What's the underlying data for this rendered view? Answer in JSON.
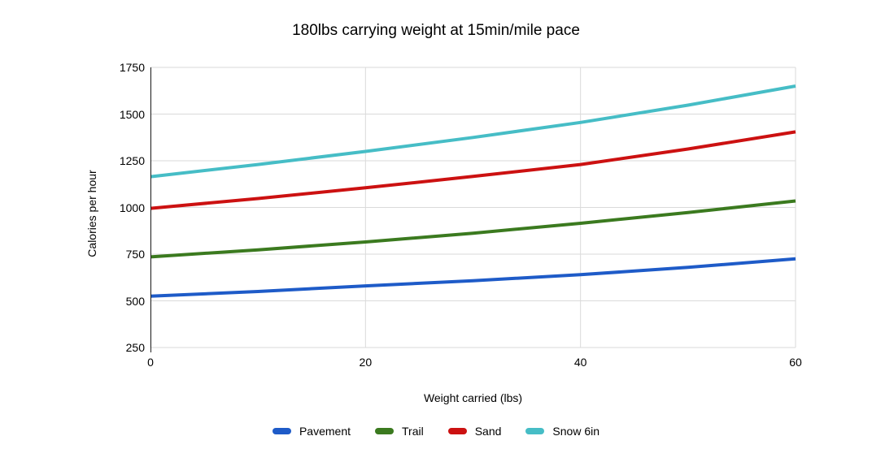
{
  "chart_data": {
    "type": "line",
    "title": "180lbs carrying weight at 15min/mile pace",
    "xlabel": "Weight carried (lbs)",
    "ylabel": "Calories per hour",
    "xlim": [
      0,
      60
    ],
    "ylim": [
      250,
      1750
    ],
    "xticks": [
      0,
      20,
      40,
      60
    ],
    "yticks": [
      250,
      500,
      750,
      1000,
      1250,
      1500,
      1750
    ],
    "grid": true,
    "legend_position": "bottom",
    "x": [
      0,
      10,
      20,
      30,
      40,
      50,
      60
    ],
    "series": [
      {
        "name": "Pavement",
        "color": "#1e5bc8",
        "values": [
          525,
          550,
          580,
          608,
          640,
          679,
          725
        ]
      },
      {
        "name": "Trail",
        "color": "#3b7a1f",
        "values": [
          735,
          773,
          815,
          862,
          915,
          973,
          1035
        ]
      },
      {
        "name": "Sand",
        "color": "#cc1111",
        "values": [
          995,
          1048,
          1105,
          1166,
          1230,
          1313,
          1405
        ]
      },
      {
        "name": "Snow 6in",
        "color": "#46bdc6",
        "values": [
          1165,
          1230,
          1300,
          1375,
          1455,
          1548,
          1650
        ]
      }
    ],
    "colors": {
      "gridline": "#dadada",
      "axis_line": "#222222",
      "text": "#000000",
      "background": "#ffffff"
    }
  }
}
